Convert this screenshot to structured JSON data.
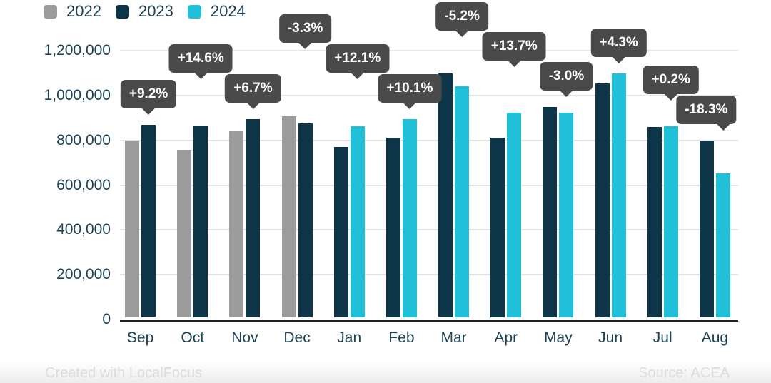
{
  "legend": {
    "items": [
      {
        "label": "2022",
        "color": "#9c9c9c"
      },
      {
        "label": "2023",
        "color": "#0d3547"
      },
      {
        "label": "2024",
        "color": "#1fc0d8"
      }
    ]
  },
  "footer": {
    "credit": "Created with LocalFocus",
    "source": "Source:  ACEA"
  },
  "chart_data": {
    "type": "bar",
    "title": "",
    "legend_position": "top-left",
    "grid": true,
    "ylim": [
      0,
      1200000
    ],
    "yticks": [
      "1,200,000",
      "1,000,000",
      "800,000",
      "600,000",
      "400,000",
      "200,000",
      "0"
    ],
    "series_names": [
      "2022",
      "2023",
      "2024"
    ],
    "colors": {
      "2022": "#9c9c9c",
      "2023": "#0d3547",
      "2024": "#1fc0d8"
    },
    "tooltip_color": "#4a4a4a",
    "months": [
      {
        "label": "Sep",
        "change": "+9.2%",
        "bars": [
          {
            "series": "2022",
            "value": 788000
          },
          {
            "series": "2023",
            "value": 861000
          }
        ]
      },
      {
        "label": "Oct",
        "change": "+14.6%",
        "bars": [
          {
            "series": "2022",
            "value": 746000
          },
          {
            "series": "2023",
            "value": 855000
          }
        ]
      },
      {
        "label": "Nov",
        "change": "+6.7%",
        "bars": [
          {
            "series": "2022",
            "value": 830000
          },
          {
            "series": "2023",
            "value": 886000
          }
        ]
      },
      {
        "label": "Dec",
        "change": "-3.3%",
        "bars": [
          {
            "series": "2022",
            "value": 897000
          },
          {
            "series": "2023",
            "value": 867000
          }
        ]
      },
      {
        "label": "Jan",
        "change": "+12.1%",
        "bars": [
          {
            "series": "2023",
            "value": 760000
          },
          {
            "series": "2024",
            "value": 852000
          }
        ]
      },
      {
        "label": "Feb",
        "change": "+10.1%",
        "bars": [
          {
            "series": "2023",
            "value": 803000
          },
          {
            "series": "2024",
            "value": 884000
          }
        ]
      },
      {
        "label": "Mar",
        "change": "-5.2%",
        "bars": [
          {
            "series": "2023",
            "value": 1088000
          },
          {
            "series": "2024",
            "value": 1032000
          }
        ]
      },
      {
        "label": "Apr",
        "change": "+13.7%",
        "bars": [
          {
            "series": "2023",
            "value": 803000
          },
          {
            "series": "2024",
            "value": 914000
          }
        ]
      },
      {
        "label": "May",
        "change": "-3.0%",
        "bars": [
          {
            "series": "2023",
            "value": 940000
          },
          {
            "series": "2024",
            "value": 912000
          }
        ]
      },
      {
        "label": "Jun",
        "change": "+4.3%",
        "bars": [
          {
            "series": "2023",
            "value": 1045000
          },
          {
            "series": "2024",
            "value": 1090000
          }
        ]
      },
      {
        "label": "Jul",
        "change": "+0.2%",
        "bars": [
          {
            "series": "2023",
            "value": 850000
          },
          {
            "series": "2024",
            "value": 852000
          }
        ]
      },
      {
        "label": "Aug",
        "change": "-18.3%",
        "bars": [
          {
            "series": "2023",
            "value": 788000
          },
          {
            "series": "2024",
            "value": 644000
          }
        ]
      }
    ]
  }
}
